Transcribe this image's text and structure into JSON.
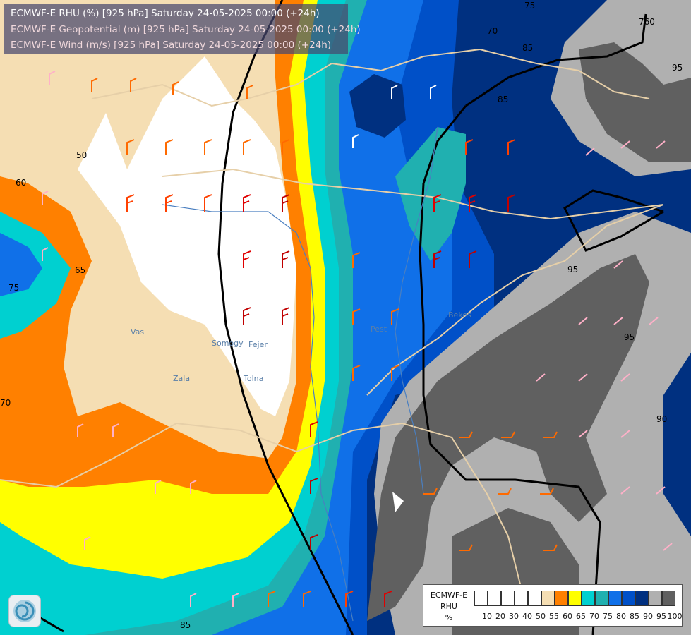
{
  "header": {
    "lines": [
      {
        "text": "ECMWF-E RHU (%) [925 hPa] Saturday 24-05-2025 00:00 (+24h)",
        "color": "#ffffff"
      },
      {
        "text": "ECMWF-E Geopotential (m) [925 hPa] Saturday 24-05-2025 00:00 (+24h)",
        "color": "#f0d8dc"
      },
      {
        "text": "ECMWF-E Wind (m/s) [925 hPa] Saturday 24-05-2025 00:00 (+24h)",
        "color": "#f0d8dc"
      }
    ]
  },
  "legend": {
    "title_lines": [
      "ECMWF-E",
      "RHU",
      "%"
    ],
    "colors": [
      "#ffffff",
      "#ffffff",
      "#ffffff",
      "#ffffff",
      "#ffffff",
      "#f5deb3",
      "#ff8000",
      "#ffff00",
      "#00d0d0",
      "#20b0b0",
      "#1070e8",
      "#0050c8",
      "#003080",
      "#b0b0b0",
      "#606060"
    ],
    "ticks": [
      "10",
      "20",
      "30",
      "40",
      "50",
      "55",
      "60",
      "65",
      "70",
      "75",
      "80",
      "85",
      "90",
      "95",
      "100"
    ]
  },
  "contour_labels": [
    "50",
    "60",
    "65",
    "75",
    "70",
    "85",
    "95",
    "95",
    "90",
    "95",
    "85",
    "75",
    "70",
    "760",
    "85"
  ],
  "region_labels": [
    "Vas",
    "Zala",
    "Somogy",
    "Fejer",
    "Tolna",
    "Pest",
    "Bekes"
  ],
  "colors": {
    "white": "#ffffff",
    "wheat": "#f5deb3",
    "orange": "#ff8000",
    "yellow": "#ffff00",
    "cyan": "#00d0d0",
    "teal": "#20b0b0",
    "blue": "#1070e8",
    "mid_blue": "#0050c8",
    "navy": "#003080",
    "grey": "#b0b0b0",
    "dark_grey": "#606060",
    "border": "#e6cfa8",
    "river": "#4a7fc0",
    "isoline": "#000000"
  }
}
